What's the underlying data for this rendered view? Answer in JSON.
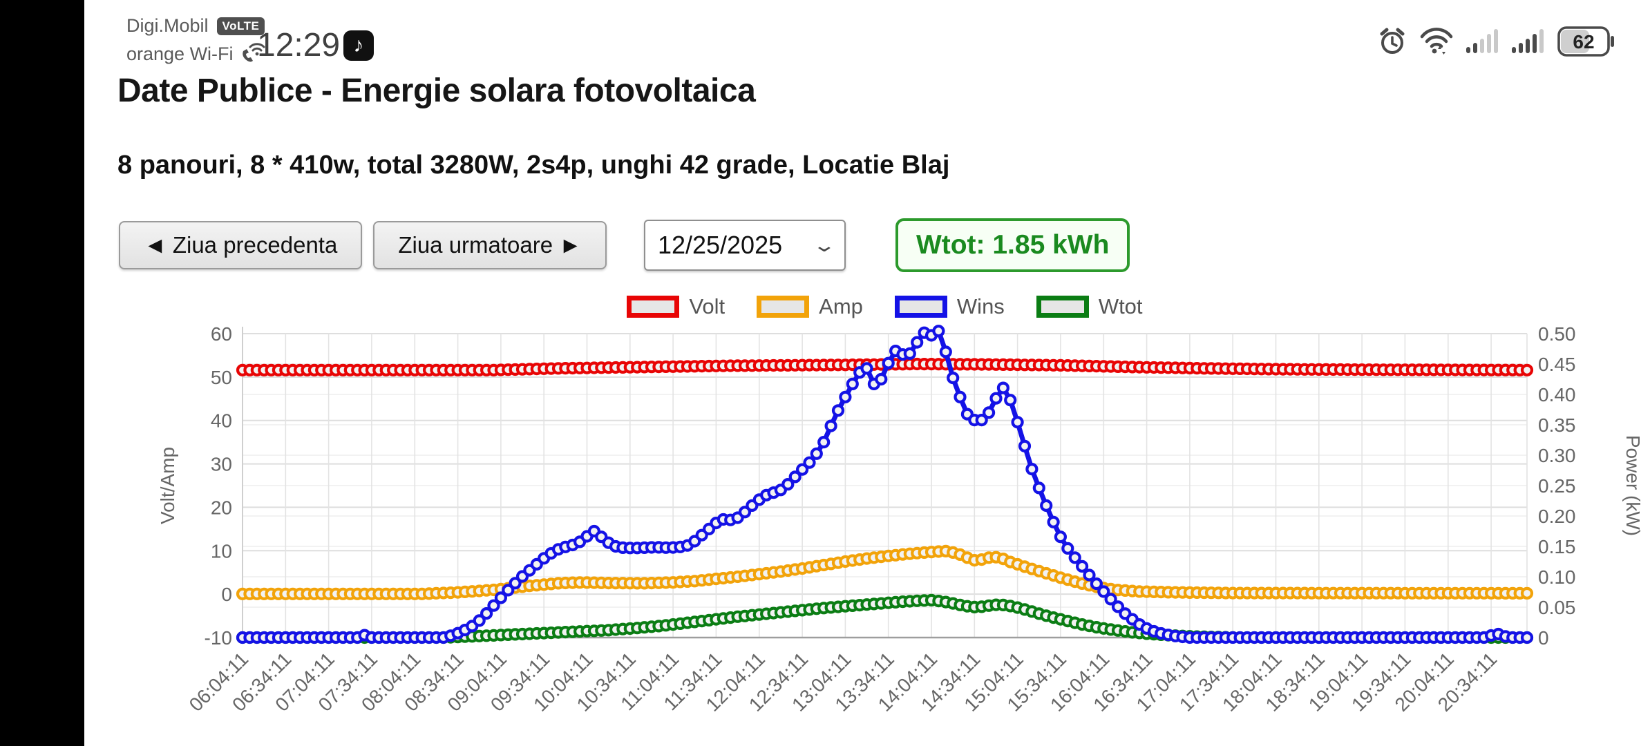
{
  "status_bar": {
    "carrier": "Digi.Mobil",
    "volte_badge": "VoLTE",
    "network": "orange Wi-Fi",
    "time": "12:29",
    "battery_percent": "62",
    "icons": {
      "left": [
        "wifi-calling-icon",
        "tiktok-icon"
      ],
      "right": [
        "alarm-icon",
        "wifi-icon",
        "signal-bars-sim1",
        "signal-bars-sim2",
        "battery-icon"
      ]
    }
  },
  "page": {
    "title": "Date Publice - Energie solara fotovoltaica",
    "subtitle": "8 panouri, 8 * 410w, total 3280W, 2s4p, unghi 42 grade, Locatie Blaj"
  },
  "controls": {
    "prev_button": "◄ Ziua precedenta",
    "next_button": "Ziua urmatoare ►",
    "date_value": "12/25/2025",
    "wtot_badge": "Wtot: 1.85 kWh"
  },
  "chart_data": {
    "type": "line",
    "title": "",
    "legend_position": "top-center",
    "grid": true,
    "marker_style": "hollow-circle",
    "marker_step_min": 5,
    "x_axis": {
      "start_time": "06:04:11",
      "tick_interval_min": 30,
      "minutes_span": 895,
      "tick_labels": [
        "06:04:11",
        "06:34:11",
        "07:04:11",
        "07:34:11",
        "08:04:11",
        "08:34:11",
        "09:04:11",
        "09:34:11",
        "10:04:11",
        "10:34:11",
        "11:04:11",
        "11:34:11",
        "12:04:11",
        "12:34:11",
        "13:04:11",
        "13:34:11",
        "14:04:11",
        "14:34:11",
        "15:04:11",
        "15:34:11",
        "16:04:11",
        "16:34:11",
        "17:04:11",
        "17:34:11",
        "18:04:11",
        "18:34:11",
        "19:04:11",
        "19:34:11",
        "20:04:11",
        "20:34:11"
      ]
    },
    "left_axis": {
      "label": "Volt/Amp",
      "min": -10,
      "max": 60,
      "ticks": [
        60,
        50,
        40,
        30,
        20,
        10,
        0,
        -10
      ]
    },
    "right_axis": {
      "label": "Power (kW)",
      "min": 0,
      "max": 0.5,
      "ticks": [
        "0.50",
        "0.45",
        "0.40",
        "0.35",
        "0.30",
        "0.25",
        "0.20",
        "0.15",
        "0.10",
        "0.05",
        "0"
      ]
    },
    "legend": [
      {
        "name": "Volt",
        "color": "#e80505"
      },
      {
        "name": "Amp",
        "color": "#f2a30a"
      },
      {
        "name": "Wins",
        "color": "#1412e6"
      },
      {
        "name": "Wtot",
        "color": "#0b7d14"
      }
    ],
    "series": [
      {
        "name": "Volt",
        "color": "#e80505",
        "axis": "left",
        "line_width": 5,
        "keyframes": [
          [
            0,
            51.6
          ],
          [
            175,
            51.6
          ],
          [
            220,
            52.0
          ],
          [
            280,
            52.3
          ],
          [
            340,
            52.6
          ],
          [
            420,
            52.8
          ],
          [
            470,
            53.0
          ],
          [
            520,
            52.9
          ],
          [
            570,
            52.7
          ],
          [
            620,
            52.3
          ],
          [
            670,
            52.0
          ],
          [
            720,
            51.8
          ],
          [
            780,
            51.7
          ],
          [
            895,
            51.6
          ]
        ]
      },
      {
        "name": "Amp",
        "color": "#f2a30a",
        "axis": "left",
        "line_width": 6,
        "keyframes": [
          [
            0,
            0.05
          ],
          [
            125,
            0.05
          ],
          [
            150,
            0.4
          ],
          [
            176,
            1.0
          ],
          [
            200,
            1.9
          ],
          [
            220,
            2.5
          ],
          [
            236,
            2.7
          ],
          [
            256,
            2.55
          ],
          [
            280,
            2.5
          ],
          [
            300,
            2.7
          ],
          [
            315,
            3.0
          ],
          [
            330,
            3.5
          ],
          [
            345,
            4.0
          ],
          [
            360,
            4.6
          ],
          [
            375,
            5.2
          ],
          [
            390,
            5.9
          ],
          [
            405,
            6.7
          ],
          [
            420,
            7.5
          ],
          [
            435,
            8.2
          ],
          [
            450,
            8.8
          ],
          [
            465,
            9.3
          ],
          [
            480,
            9.7
          ],
          [
            490,
            9.9
          ],
          [
            498,
            9.4
          ],
          [
            505,
            8.4
          ],
          [
            510,
            7.8
          ],
          [
            516,
            8.0
          ],
          [
            522,
            8.6
          ],
          [
            528,
            8.4
          ],
          [
            535,
            7.4
          ],
          [
            548,
            6.0
          ],
          [
            560,
            4.8
          ],
          [
            572,
            3.6
          ],
          [
            584,
            2.5
          ],
          [
            596,
            1.6
          ],
          [
            608,
            1.0
          ],
          [
            625,
            0.6
          ],
          [
            650,
            0.4
          ],
          [
            690,
            0.25
          ],
          [
            895,
            0.2
          ]
        ]
      },
      {
        "name": "Wtot",
        "color": "#0b7d14",
        "axis": "left",
        "line_width": 6,
        "keyframes": [
          [
            0,
            -10
          ],
          [
            140,
            -10
          ],
          [
            155,
            -9.8
          ],
          [
            175,
            -9.5
          ],
          [
            195,
            -9.2
          ],
          [
            215,
            -8.9
          ],
          [
            235,
            -8.6
          ],
          [
            255,
            -8.3
          ],
          [
            275,
            -7.8
          ],
          [
            292,
            -7.3
          ],
          [
            310,
            -6.6
          ],
          [
            330,
            -5.8
          ],
          [
            345,
            -5.2
          ],
          [
            360,
            -4.7
          ],
          [
            375,
            -4.2
          ],
          [
            390,
            -3.7
          ],
          [
            405,
            -3.2
          ],
          [
            420,
            -2.8
          ],
          [
            435,
            -2.4
          ],
          [
            450,
            -2.0
          ],
          [
            462,
            -1.7
          ],
          [
            472,
            -1.5
          ],
          [
            480,
            -1.4
          ],
          [
            488,
            -1.7
          ],
          [
            496,
            -2.2
          ],
          [
            503,
            -2.7
          ],
          [
            509,
            -3.0
          ],
          [
            515,
            -2.9
          ],
          [
            521,
            -2.6
          ],
          [
            527,
            -2.4
          ],
          [
            533,
            -2.6
          ],
          [
            540,
            -3.1
          ],
          [
            548,
            -3.8
          ],
          [
            556,
            -4.6
          ],
          [
            565,
            -5.4
          ],
          [
            575,
            -6.2
          ],
          [
            585,
            -7.0
          ],
          [
            596,
            -7.7
          ],
          [
            608,
            -8.3
          ],
          [
            620,
            -8.8
          ],
          [
            633,
            -9.2
          ],
          [
            647,
            -9.5
          ],
          [
            662,
            -9.75
          ],
          [
            678,
            -9.9
          ],
          [
            695,
            -10
          ],
          [
            895,
            -10
          ]
        ]
      },
      {
        "name": "Wins",
        "color": "#1412e6",
        "axis": "left",
        "line_width": 7,
        "keyframes": [
          [
            0,
            -10
          ],
          [
            83,
            -10
          ],
          [
            86,
            -9.2
          ],
          [
            89,
            -10
          ],
          [
            140,
            -10
          ],
          [
            147,
            -9.4
          ],
          [
            153,
            -8.6
          ],
          [
            159,
            -7.6
          ],
          [
            164,
            -6.4
          ],
          [
            169,
            -4.8
          ],
          [
            174,
            -3.0
          ],
          [
            179,
            -1.2
          ],
          [
            184,
            0.6
          ],
          [
            189,
            2.2
          ],
          [
            194,
            3.8
          ],
          [
            199,
            5.2
          ],
          [
            204,
            6.6
          ],
          [
            209,
            8.0
          ],
          [
            214,
            9.2
          ],
          [
            219,
            10.2
          ],
          [
            224,
            10.8
          ],
          [
            229,
            11.2
          ],
          [
            234,
            11.8
          ],
          [
            238,
            12.8
          ],
          [
            242,
            13.8
          ],
          [
            245,
            14.5
          ],
          [
            248,
            13.8
          ],
          [
            252,
            12.6
          ],
          [
            256,
            11.6
          ],
          [
            260,
            11.0
          ],
          [
            265,
            10.7
          ],
          [
            272,
            10.6
          ],
          [
            280,
            10.7
          ],
          [
            288,
            10.8
          ],
          [
            296,
            10.7
          ],
          [
            304,
            10.8
          ],
          [
            310,
            11.2
          ],
          [
            315,
            12.2
          ],
          [
            320,
            13.6
          ],
          [
            325,
            15.0
          ],
          [
            329,
            16.2
          ],
          [
            333,
            17.0
          ],
          [
            337,
            17.4
          ],
          [
            341,
            17.0
          ],
          [
            345,
            17.6
          ],
          [
            349,
            18.6
          ],
          [
            353,
            19.8
          ],
          [
            357,
            21.0
          ],
          [
            361,
            22.0
          ],
          [
            365,
            22.8
          ],
          [
            369,
            23.3
          ],
          [
            373,
            23.6
          ],
          [
            377,
            24.4
          ],
          [
            381,
            25.6
          ],
          [
            385,
            27.0
          ],
          [
            389,
            28.4
          ],
          [
            393,
            29.6
          ],
          [
            397,
            31.0
          ],
          [
            401,
            32.8
          ],
          [
            405,
            35.0
          ],
          [
            409,
            38.0
          ],
          [
            413,
            41.0
          ],
          [
            417,
            43.6
          ],
          [
            421,
            46.0
          ],
          [
            425,
            48.4
          ],
          [
            429,
            50.6
          ],
          [
            432,
            52.0
          ],
          [
            434,
            52.6
          ],
          [
            436,
            51.4
          ],
          [
            438,
            49.6
          ],
          [
            440,
            48.4
          ],
          [
            442,
            48.0
          ],
          [
            444,
            48.8
          ],
          [
            446,
            50.2
          ],
          [
            448,
            51.8
          ],
          [
            450,
            53.2
          ],
          [
            452,
            54.4
          ],
          [
            454,
            55.6
          ],
          [
            456,
            56.4
          ],
          [
            458,
            56.0
          ],
          [
            460,
            55.2
          ],
          [
            462,
            54.6
          ],
          [
            464,
            55.0
          ],
          [
            466,
            55.8
          ],
          [
            468,
            56.8
          ],
          [
            470,
            58.0
          ],
          [
            472,
            59.2
          ],
          [
            474,
            60.0
          ],
          [
            476,
            60.4
          ],
          [
            478,
            60.0
          ],
          [
            480,
            59.6
          ],
          [
            482,
            60.2
          ],
          [
            484,
            60.8
          ],
          [
            486,
            60.4
          ],
          [
            488,
            58.4
          ],
          [
            490,
            55.8
          ],
          [
            492,
            53.2
          ],
          [
            494,
            50.8
          ],
          [
            496,
            48.8
          ],
          [
            498,
            47.2
          ],
          [
            500,
            45.4
          ],
          [
            502,
            43.6
          ],
          [
            504,
            42.0
          ],
          [
            506,
            40.9
          ],
          [
            509,
            40.2
          ],
          [
            512,
            39.9
          ],
          [
            515,
            40.1
          ],
          [
            518,
            40.8
          ],
          [
            520,
            41.8
          ],
          [
            522,
            43.0
          ],
          [
            524,
            44.4
          ],
          [
            526,
            45.8
          ],
          [
            528,
            46.8
          ],
          [
            530,
            47.5
          ],
          [
            532,
            47.0
          ],
          [
            534,
            45.6
          ],
          [
            536,
            43.8
          ],
          [
            538,
            41.8
          ],
          [
            540,
            39.6
          ],
          [
            542,
            37.4
          ],
          [
            544,
            35.2
          ],
          [
            546,
            33.0
          ],
          [
            548,
            30.8
          ],
          [
            550,
            28.8
          ],
          [
            553,
            26.2
          ],
          [
            556,
            23.6
          ],
          [
            559,
            21.2
          ],
          [
            562,
            18.8
          ],
          [
            565,
            16.6
          ],
          [
            568,
            14.4
          ],
          [
            571,
            12.6
          ],
          [
            574,
            11.0
          ],
          [
            577,
            9.6
          ],
          [
            580,
            8.4
          ],
          [
            584,
            6.8
          ],
          [
            588,
            5.2
          ],
          [
            592,
            3.6
          ],
          [
            596,
            2.0
          ],
          [
            600,
            0.6
          ],
          [
            604,
            -0.8
          ],
          [
            608,
            -2.2
          ],
          [
            612,
            -3.6
          ],
          [
            616,
            -4.8
          ],
          [
            620,
            -5.8
          ],
          [
            625,
            -7.0
          ],
          [
            630,
            -7.9
          ],
          [
            636,
            -8.7
          ],
          [
            643,
            -9.3
          ],
          [
            651,
            -9.7
          ],
          [
            660,
            -10
          ],
          [
            866,
            -10
          ],
          [
            871,
            -9.4
          ],
          [
            874,
            -9.1
          ],
          [
            878,
            -9.5
          ],
          [
            882,
            -10
          ],
          [
            895,
            -10
          ]
        ]
      }
    ]
  }
}
